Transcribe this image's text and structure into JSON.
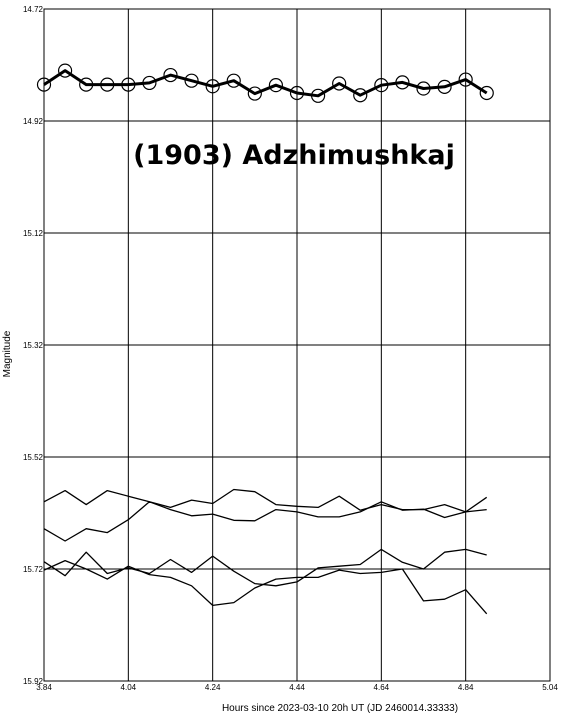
{
  "chart_data": {
    "type": "line",
    "title": "(1903) Adzhimushkaj",
    "xlabel": "Hours since 2023-03-10 20h UT (JD 2460014.33333)",
    "ylabel": "Magnitude",
    "xlim": [
      3.84,
      5.04
    ],
    "ylim": [
      14.72,
      15.92
    ],
    "y_inverted": true,
    "grid": true,
    "x_ticks": [
      "3.84",
      "4.04",
      "4.24",
      "4.44",
      "4.64",
      "4.84",
      "5.04"
    ],
    "y_ticks": [
      "14.72",
      "14.92",
      "15.12",
      "15.32",
      "15.52",
      "15.72",
      "15.92"
    ],
    "series": [
      {
        "role": "target",
        "markers": true,
        "x": [
          3.84,
          3.89,
          3.94,
          3.99,
          4.04,
          4.09,
          4.14,
          4.19,
          4.24,
          4.29,
          4.34,
          4.39,
          4.44,
          4.49,
          4.54,
          4.59,
          4.64,
          4.69,
          4.74,
          4.79,
          4.84,
          4.89
        ],
        "y": [
          14.855,
          14.83,
          14.855,
          14.855,
          14.855,
          14.852,
          14.838,
          14.848,
          14.858,
          14.848,
          14.871,
          14.856,
          14.87,
          14.875,
          14.853,
          14.874,
          14.856,
          14.851,
          14.862,
          14.859,
          14.846,
          14.87
        ]
      },
      {
        "role": "comparison",
        "markers": false,
        "x": [
          3.84,
          3.89,
          3.94,
          3.99,
          4.04,
          4.09,
          4.14,
          4.19,
          4.24,
          4.29,
          4.34,
          4.39,
          4.44,
          4.49,
          4.54,
          4.59,
          4.64,
          4.69,
          4.74,
          4.79,
          4.84,
          4.89
        ],
        "y": [
          15.6,
          15.58,
          15.605,
          15.58,
          15.59,
          15.6,
          15.61,
          15.597,
          15.603,
          15.578,
          15.582,
          15.605,
          15.608,
          15.61,
          15.59,
          15.615,
          15.605,
          15.614,
          15.614,
          15.605,
          15.618,
          15.592
        ]
      },
      {
        "role": "comparison",
        "markers": false,
        "x": [
          3.84,
          3.89,
          3.94,
          3.99,
          4.04,
          4.09,
          4.14,
          4.19,
          4.24,
          4.29,
          4.34,
          4.39,
          4.44,
          4.49,
          4.54,
          4.59,
          4.64,
          4.69,
          4.74,
          4.79,
          4.84,
          4.89
        ],
        "y": [
          15.648,
          15.67,
          15.648,
          15.655,
          15.632,
          15.6,
          15.614,
          15.625,
          15.622,
          15.633,
          15.634,
          15.614,
          15.618,
          15.627,
          15.627,
          15.618,
          15.6,
          15.615,
          15.613,
          15.628,
          15.618,
          15.614
        ]
      },
      {
        "role": "comparison",
        "markers": false,
        "x": [
          3.84,
          3.89,
          3.94,
          3.99,
          4.04,
          4.09,
          4.14,
          4.19,
          4.24,
          4.29,
          4.34,
          4.39,
          4.44,
          4.49,
          4.54,
          4.59,
          4.64,
          4.69,
          4.74,
          4.79,
          4.84,
          4.89
        ],
        "y": [
          15.707,
          15.732,
          15.69,
          15.728,
          15.718,
          15.728,
          15.703,
          15.726,
          15.697,
          15.724,
          15.746,
          15.75,
          15.743,
          15.718,
          15.715,
          15.712,
          15.685,
          15.708,
          15.72,
          15.69,
          15.685,
          15.695
        ]
      },
      {
        "role": "comparison",
        "markers": false,
        "x": [
          3.84,
          3.89,
          3.94,
          3.99,
          4.04,
          4.09,
          4.14,
          4.19,
          4.24,
          4.29,
          4.34,
          4.39,
          4.44,
          4.49,
          4.54,
          4.59,
          4.64,
          4.69,
          4.74,
          4.79,
          4.84,
          4.89
        ],
        "y": [
          15.722,
          15.705,
          15.72,
          15.738,
          15.715,
          15.73,
          15.735,
          15.75,
          15.785,
          15.78,
          15.754,
          15.738,
          15.735,
          15.735,
          15.722,
          15.728,
          15.726,
          15.72,
          15.777,
          15.774,
          15.757,
          15.8
        ]
      }
    ]
  }
}
